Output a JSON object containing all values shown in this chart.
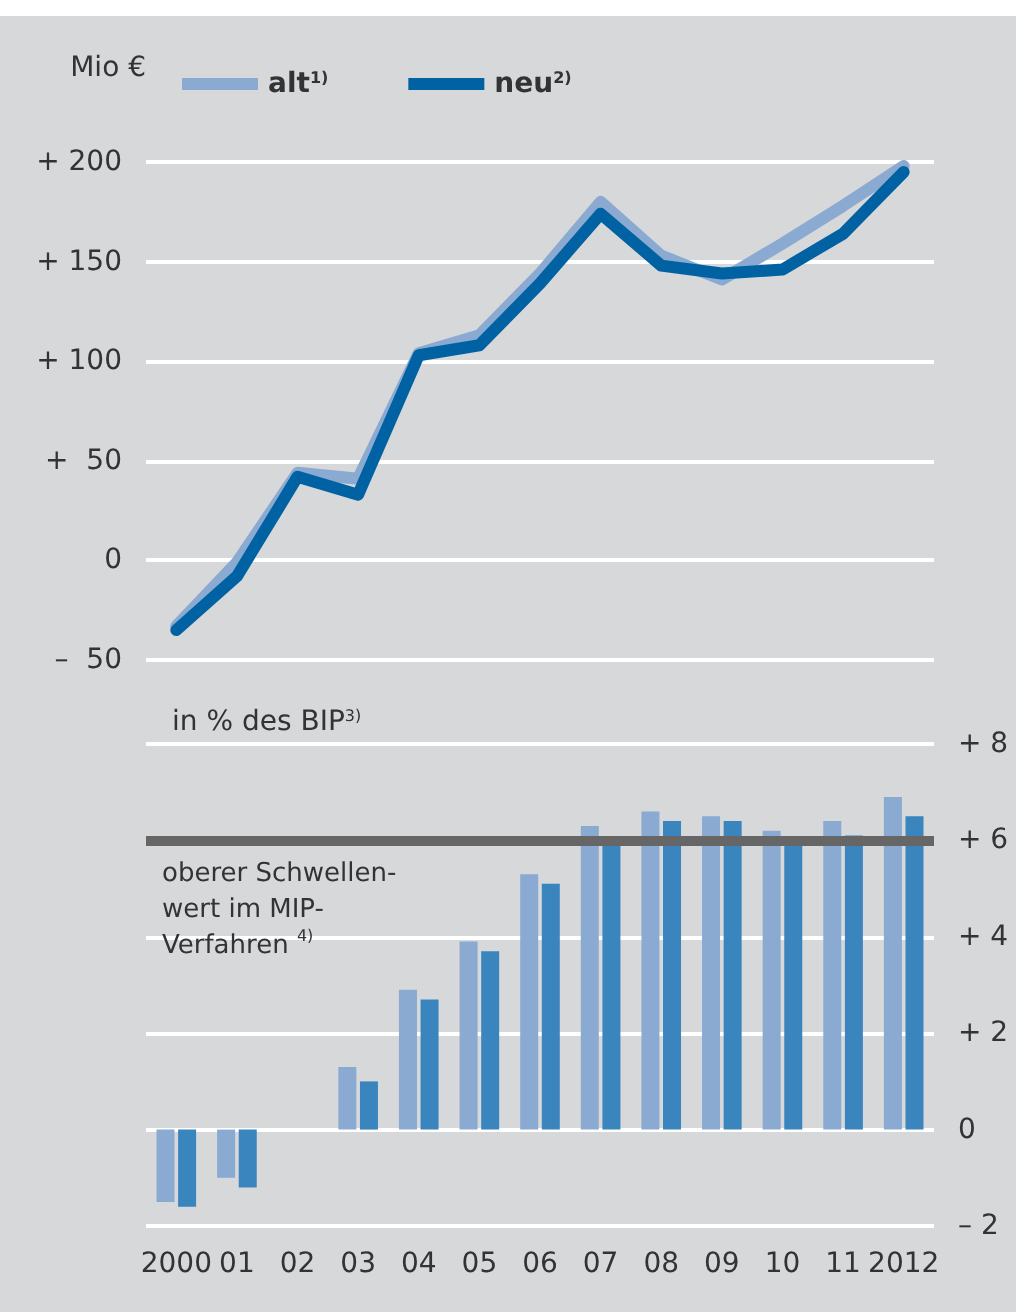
{
  "chart_data": [
    {
      "type": "line",
      "ylabel": "Mio €",
      "categories": [
        "2000",
        "01",
        "02",
        "03",
        "04",
        "05",
        "06",
        "07",
        "08",
        "09",
        "10",
        "11",
        "2012"
      ],
      "series": [
        {
          "name": "alt$^{1)}$",
          "color": "#8aaad2",
          "values": [
            -33,
            -1,
            44,
            41,
            104,
            113,
            144,
            180,
            153,
            141,
            159,
            178,
            198
          ]
        },
        {
          "name": "neu$^{2)}$",
          "color": "#0062a3",
          "values": [
            -35,
            -8,
            42,
            33,
            103,
            108,
            139,
            174,
            148,
            144,
            146,
            164,
            195
          ]
        }
      ],
      "ylim": [
        -50,
        200
      ],
      "yticks": [
        {
          "value": -50,
          "label": "–  50"
        },
        {
          "value": 0,
          "label": "0"
        },
        {
          "value": 50,
          "label": "+  50"
        },
        {
          "value": 100,
          "label": "+ 100"
        },
        {
          "value": 150,
          "label": "+ 150"
        },
        {
          "value": 200,
          "label": "+ 200"
        }
      ],
      "grid": "y",
      "legend": "top",
      "tick_labels": "y",
      "line_style": "solid",
      "marker": "none"
    },
    {
      "type": "bar",
      "ylabel": "in % des BIP$^{3)}$",
      "categories": [
        "2000",
        "01",
        "02",
        "03",
        "04",
        "05",
        "06",
        "07",
        "08",
        "09",
        "10",
        "11",
        "2012"
      ],
      "series": [
        {
          "color": "#8aaad2",
          "values": [
            -1.5,
            -1.0,
            0,
            1.3,
            2.9,
            3.9,
            5.3,
            6.3,
            6.6,
            6.5,
            6.2,
            6.4,
            6.9
          ]
        },
        {
          "color": "#3a85bd",
          "values": [
            -1.6,
            -1.2,
            0,
            1.0,
            2.7,
            3.7,
            5.1,
            6.0,
            6.4,
            6.4,
            6.0,
            6.1,
            6.5
          ]
        }
      ],
      "ylim": [
        -2,
        8
      ],
      "yticks": [
        {
          "value": -2,
          "label": "– 2"
        },
        {
          "value": 0,
          "label": "0"
        },
        {
          "value": 2,
          "label": "+ 2"
        },
        {
          "value": 4,
          "label": "+ 4"
        },
        {
          "value": 6,
          "label": "+ 6"
        },
        {
          "value": 8,
          "label": "+ 8"
        }
      ],
      "ref_lines": [
        {
          "axis": "y",
          "value": 6,
          "label": "oberer Schwellen-\nwert im MIP-\nVerfahren $^{4)}$",
          "color": "#666666"
        }
      ],
      "grid": "y"
    }
  ]
}
